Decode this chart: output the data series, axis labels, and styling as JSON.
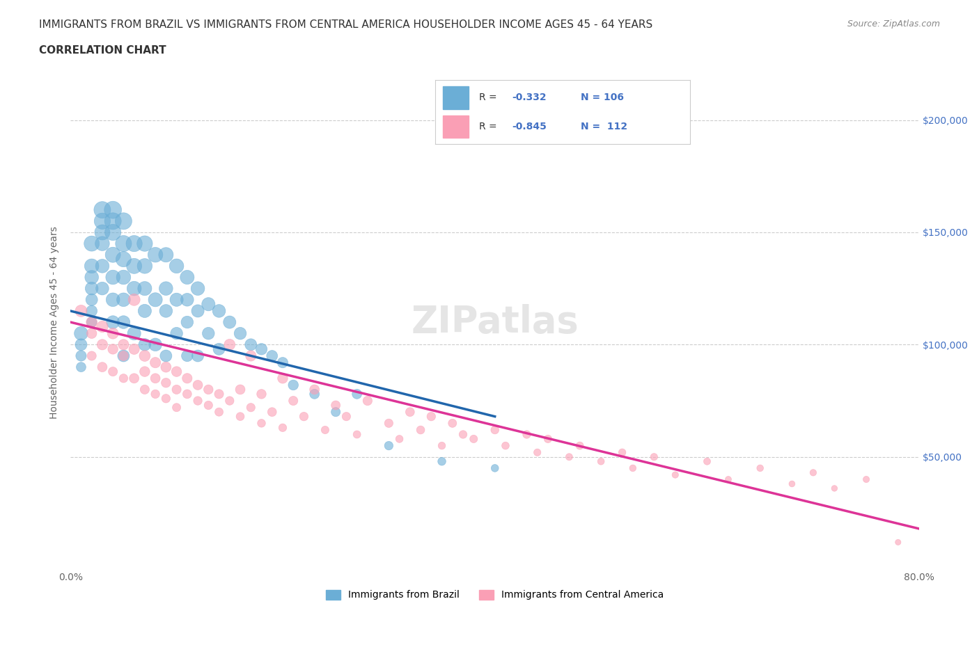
{
  "title_line1": "IMMIGRANTS FROM BRAZIL VS IMMIGRANTS FROM CENTRAL AMERICA HOUSEHOLDER INCOME AGES 45 - 64 YEARS",
  "title_line2": "CORRELATION CHART",
  "source_text": "Source: ZipAtlas.com",
  "xlabel": "",
  "ylabel": "Householder Income Ages 45 - 64 years",
  "xlim": [
    0.0,
    0.8
  ],
  "ylim": [
    0,
    220000
  ],
  "xtick_labels": [
    "0.0%",
    "",
    "",
    "",
    "",
    "",
    "",
    "",
    "80.0%"
  ],
  "ytick_values": [
    0,
    50000,
    100000,
    150000,
    200000
  ],
  "ytick_labels": [
    "",
    "$50,000",
    "$100,000",
    "$150,000",
    "$200,000"
  ],
  "brazil_R": "-0.332",
  "brazil_N": "106",
  "central_R": "-0.845",
  "central_N": "112",
  "brazil_color": "#6baed6",
  "brazil_line_color": "#2166ac",
  "central_color": "#fa9fb5",
  "central_line_color": "#dd3497",
  "watermark": "ZIPatlas",
  "brazil_scatter_x": [
    0.01,
    0.01,
    0.01,
    0.01,
    0.02,
    0.02,
    0.02,
    0.02,
    0.02,
    0.02,
    0.02,
    0.03,
    0.03,
    0.03,
    0.03,
    0.03,
    0.03,
    0.04,
    0.04,
    0.04,
    0.04,
    0.04,
    0.04,
    0.04,
    0.05,
    0.05,
    0.05,
    0.05,
    0.05,
    0.05,
    0.05,
    0.06,
    0.06,
    0.06,
    0.06,
    0.07,
    0.07,
    0.07,
    0.07,
    0.07,
    0.08,
    0.08,
    0.08,
    0.09,
    0.09,
    0.09,
    0.09,
    0.1,
    0.1,
    0.1,
    0.11,
    0.11,
    0.11,
    0.11,
    0.12,
    0.12,
    0.12,
    0.13,
    0.13,
    0.14,
    0.14,
    0.15,
    0.16,
    0.17,
    0.18,
    0.19,
    0.2,
    0.21,
    0.23,
    0.25,
    0.27,
    0.3,
    0.35,
    0.4
  ],
  "brazil_scatter_y": [
    105000,
    100000,
    95000,
    90000,
    145000,
    135000,
    130000,
    125000,
    120000,
    115000,
    110000,
    160000,
    155000,
    150000,
    145000,
    135000,
    125000,
    160000,
    155000,
    150000,
    140000,
    130000,
    120000,
    110000,
    155000,
    145000,
    138000,
    130000,
    120000,
    110000,
    95000,
    145000,
    135000,
    125000,
    105000,
    145000,
    135000,
    125000,
    115000,
    100000,
    140000,
    120000,
    100000,
    140000,
    125000,
    115000,
    95000,
    135000,
    120000,
    105000,
    130000,
    120000,
    110000,
    95000,
    125000,
    115000,
    95000,
    118000,
    105000,
    115000,
    98000,
    110000,
    105000,
    100000,
    98000,
    95000,
    92000,
    82000,
    78000,
    70000,
    78000,
    55000,
    48000,
    45000
  ],
  "brazil_scatter_size": [
    200,
    150,
    120,
    100,
    250,
    220,
    200,
    180,
    150,
    130,
    110,
    300,
    280,
    250,
    220,
    200,
    180,
    320,
    300,
    280,
    250,
    220,
    200,
    180,
    300,
    280,
    250,
    220,
    200,
    180,
    150,
    280,
    250,
    220,
    190,
    260,
    240,
    210,
    190,
    160,
    240,
    210,
    180,
    230,
    200,
    180,
    150,
    220,
    190,
    160,
    210,
    180,
    160,
    140,
    200,
    170,
    150,
    190,
    160,
    180,
    150,
    170,
    160,
    150,
    140,
    130,
    120,
    110,
    100,
    90,
    100,
    80,
    70,
    60
  ],
  "central_scatter_x": [
    0.01,
    0.02,
    0.02,
    0.02,
    0.03,
    0.03,
    0.03,
    0.04,
    0.04,
    0.04,
    0.05,
    0.05,
    0.05,
    0.06,
    0.06,
    0.06,
    0.07,
    0.07,
    0.07,
    0.08,
    0.08,
    0.08,
    0.09,
    0.09,
    0.09,
    0.1,
    0.1,
    0.1,
    0.11,
    0.11,
    0.12,
    0.12,
    0.13,
    0.13,
    0.14,
    0.14,
    0.15,
    0.15,
    0.16,
    0.16,
    0.17,
    0.17,
    0.18,
    0.18,
    0.19,
    0.2,
    0.2,
    0.21,
    0.22,
    0.23,
    0.24,
    0.25,
    0.26,
    0.27,
    0.28,
    0.3,
    0.31,
    0.32,
    0.33,
    0.34,
    0.35,
    0.36,
    0.37,
    0.38,
    0.4,
    0.41,
    0.43,
    0.44,
    0.45,
    0.47,
    0.48,
    0.5,
    0.52,
    0.53,
    0.55,
    0.57,
    0.6,
    0.62,
    0.65,
    0.68,
    0.7,
    0.72,
    0.75,
    0.78
  ],
  "central_scatter_y": [
    115000,
    110000,
    105000,
    95000,
    108000,
    100000,
    90000,
    105000,
    98000,
    88000,
    100000,
    95000,
    85000,
    120000,
    98000,
    85000,
    95000,
    88000,
    80000,
    92000,
    85000,
    78000,
    90000,
    83000,
    76000,
    88000,
    80000,
    72000,
    85000,
    78000,
    82000,
    75000,
    80000,
    73000,
    78000,
    70000,
    100000,
    75000,
    80000,
    68000,
    95000,
    72000,
    78000,
    65000,
    70000,
    85000,
    63000,
    75000,
    68000,
    80000,
    62000,
    73000,
    68000,
    60000,
    75000,
    65000,
    58000,
    70000,
    62000,
    68000,
    55000,
    65000,
    60000,
    58000,
    62000,
    55000,
    60000,
    52000,
    58000,
    50000,
    55000,
    48000,
    52000,
    45000,
    50000,
    42000,
    48000,
    40000,
    45000,
    38000,
    43000,
    36000,
    40000,
    12000
  ],
  "central_scatter_size": [
    150,
    130,
    110,
    90,
    140,
    120,
    100,
    130,
    110,
    90,
    120,
    100,
    80,
    150,
    120,
    100,
    130,
    110,
    90,
    120,
    100,
    80,
    115,
    95,
    80,
    110,
    90,
    75,
    105,
    85,
    100,
    80,
    95,
    78,
    90,
    75,
    130,
    80,
    100,
    72,
    120,
    78,
    95,
    70,
    85,
    110,
    68,
    90,
    80,
    100,
    65,
    88,
    78,
    62,
    92,
    78,
    60,
    85,
    72,
    80,
    58,
    75,
    68,
    65,
    70,
    60,
    68,
    55,
    65,
    52,
    62,
    50,
    58,
    48,
    55,
    45,
    52,
    42,
    48,
    40,
    46,
    38,
    44,
    35
  ],
  "brazil_trend_x": [
    0.0,
    0.4
  ],
  "brazil_trend_y": [
    115000,
    68000
  ],
  "central_trend_x": [
    0.0,
    0.8
  ],
  "central_trend_y": [
    110000,
    18000
  ],
  "dashed_trend_x": [
    0.0,
    0.8
  ],
  "dashed_trend_y": [
    110000,
    18000
  ],
  "title_fontsize": 11,
  "axis_label_fontsize": 10,
  "tick_fontsize": 10,
  "legend_fontsize": 11,
  "source_fontsize": 9,
  "watermark_fontsize": 38,
  "background_color": "#ffffff",
  "grid_color": "#cccccc",
  "title_color": "#333333",
  "axis_color": "#666666",
  "ytick_right_color": "#4472c4"
}
